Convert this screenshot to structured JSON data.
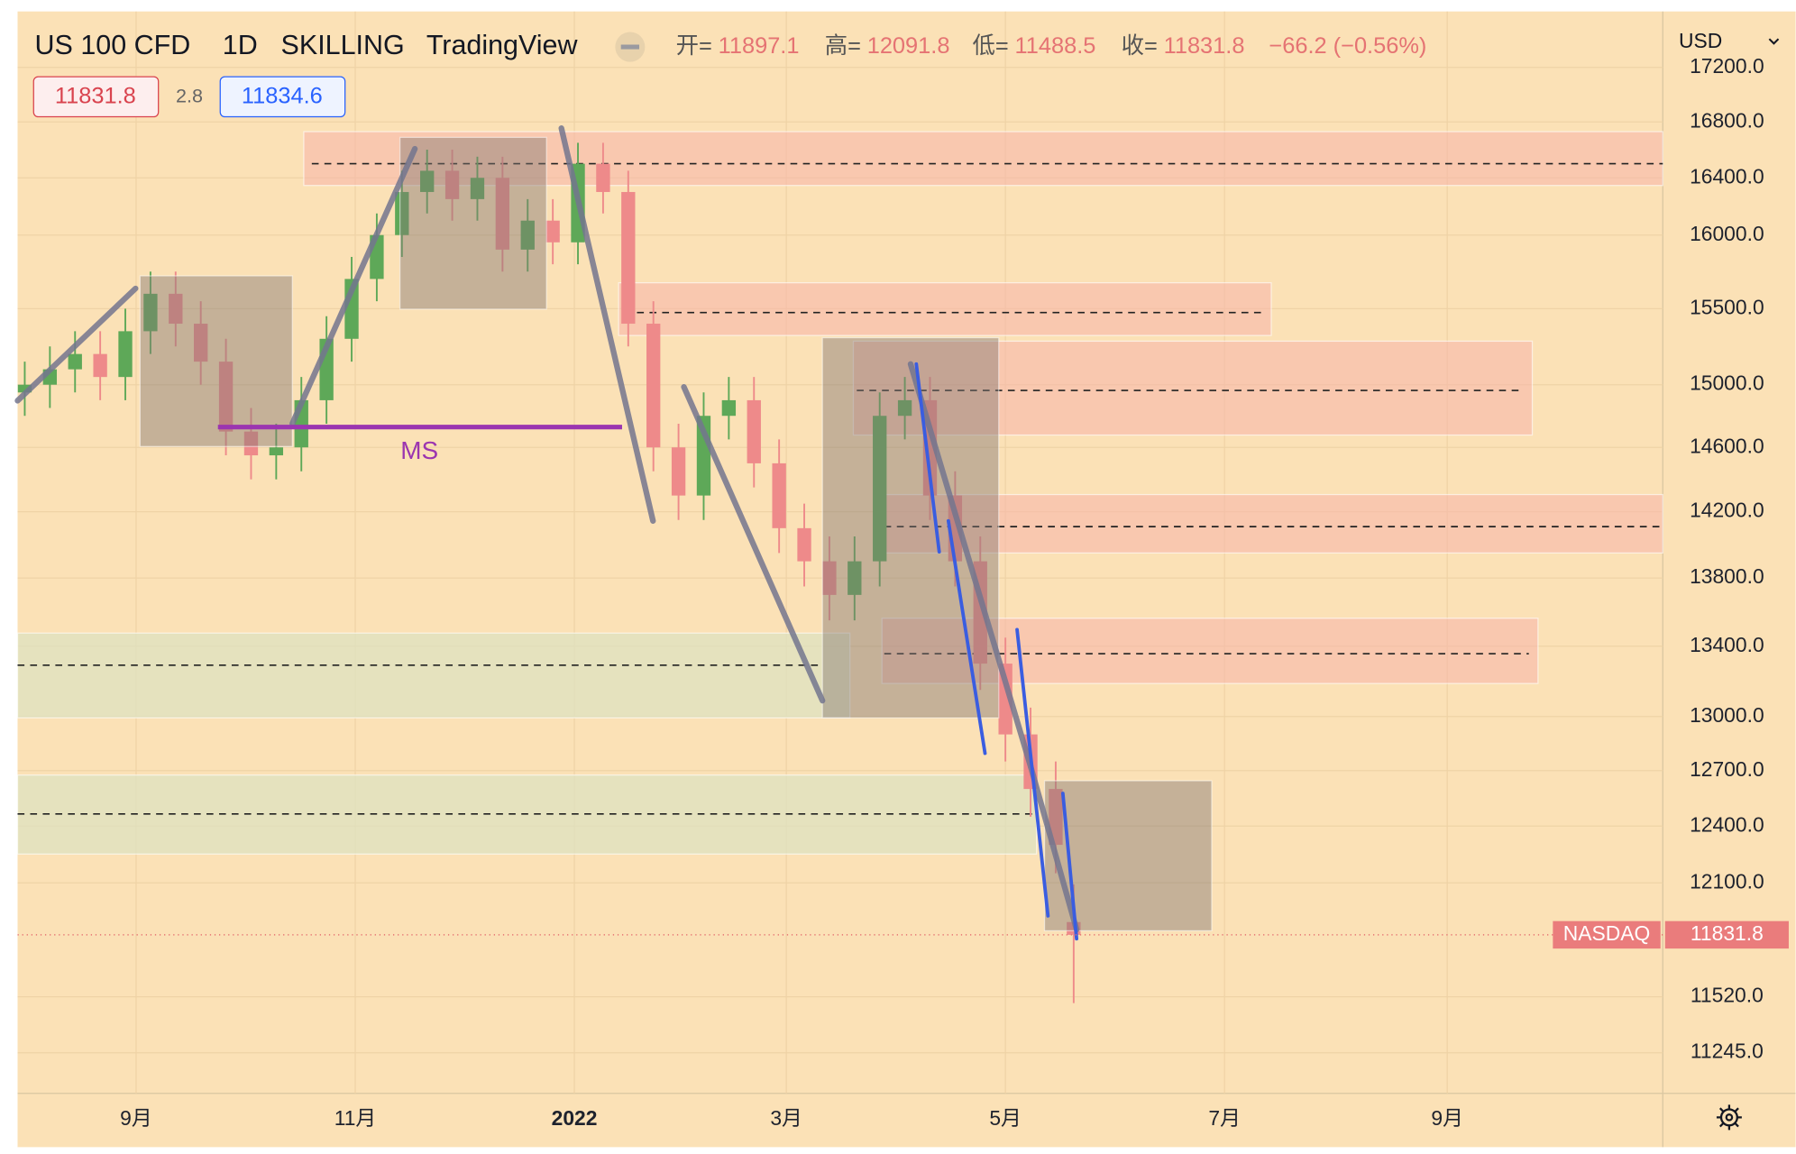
{
  "header": {
    "symbol": "US 100 CFD",
    "interval": "1D",
    "broker": "SKILLING",
    "source": "TradingView",
    "open_label": "开=",
    "high_label": "高=",
    "low_label": "低=",
    "close_label": "收=",
    "change": "−66.2 (−0.56%)",
    "spread": "2.8",
    "ask": "11834.6",
    "currency": "USD"
  },
  "chart_data": {
    "type": "candlestick",
    "exchange_label": "NASDAQ",
    "log_scale": true,
    "grid": true,
    "up_color": "#5ea858",
    "down_color": "#ee8a8a",
    "x": [
      0,
      7,
      14,
      21,
      28,
      35,
      42,
      49,
      56,
      63,
      70,
      77,
      84,
      91,
      98,
      105,
      112,
      119,
      126,
      133,
      140,
      147,
      154,
      161,
      168,
      175,
      182,
      189,
      196,
      203,
      210,
      217,
      224,
      231,
      238,
      245,
      252,
      259,
      266,
      273,
      280,
      287,
      292
    ],
    "open": [
      14950,
      15000,
      15100,
      15200,
      15050,
      15350,
      15600,
      15400,
      15150,
      14700,
      14550,
      14600,
      14900,
      15300,
      15700,
      16000,
      16300,
      16450,
      16250,
      16400,
      15900,
      16100,
      15950,
      16500,
      16300,
      15400,
      14600,
      14300,
      14800,
      14900,
      14500,
      14100,
      13900,
      13700,
      13900,
      14800,
      14900,
      14300,
      13900,
      13300,
      12900,
      12600,
      11897.1
    ],
    "high": [
      15150,
      15250,
      15350,
      15350,
      15500,
      15750,
      15750,
      15550,
      15300,
      14850,
      14750,
      15050,
      15450,
      15850,
      16150,
      16450,
      16600,
      16600,
      16550,
      16550,
      16250,
      16250,
      16650,
      16650,
      16450,
      15550,
      14750,
      14950,
      15050,
      15050,
      14650,
      14250,
      14050,
      14050,
      14950,
      15050,
      15050,
      14450,
      14050,
      13450,
      13050,
      12750,
      12091.8
    ],
    "low": [
      14800,
      14850,
      14950,
      14900,
      14900,
      15200,
      15250,
      15000,
      14550,
      14400,
      14400,
      14450,
      14750,
      15150,
      15550,
      15850,
      16150,
      16100,
      16100,
      15750,
      15750,
      15800,
      15800,
      16150,
      15250,
      14450,
      14150,
      14150,
      14650,
      14350,
      13950,
      13750,
      13550,
      13550,
      13750,
      14650,
      14150,
      13750,
      13150,
      12750,
      12450,
      12150,
      11488.5
    ],
    "close": [
      15000,
      15100,
      15200,
      15050,
      15350,
      15600,
      15400,
      15150,
      14700,
      14550,
      14600,
      14900,
      15300,
      15700,
      16000,
      16300,
      16450,
      16250,
      16400,
      15900,
      16100,
      15950,
      16500,
      16300,
      15400,
      14600,
      14300,
      14800,
      14900,
      14500,
      14100,
      13900,
      13700,
      13900,
      14800,
      14900,
      14300,
      13900,
      13300,
      12900,
      12600,
      12300,
      11831.8
    ],
    "xlim": [
      -2,
      456
    ],
    "xticks": [
      {
        "value": 31,
        "label": "9月"
      },
      {
        "value": 92,
        "label": "11月"
      },
      {
        "value": 153,
        "label": "2022"
      },
      {
        "value": 212,
        "label": "3月"
      },
      {
        "value": 273,
        "label": "5月"
      },
      {
        "value": 334,
        "label": "7月"
      },
      {
        "value": 396,
        "label": "9月"
      }
    ],
    "ylim": [
      11050,
      17620
    ],
    "yticks": [
      {
        "value": 17200,
        "label": "17200.0"
      },
      {
        "value": 16800,
        "label": "16800.0"
      },
      {
        "value": 16400,
        "label": "16400.0"
      },
      {
        "value": 16000,
        "label": "16000.0"
      },
      {
        "value": 15500,
        "label": "15500.0"
      },
      {
        "value": 15000,
        "label": "15000.0"
      },
      {
        "value": 14600,
        "label": "14600.0"
      },
      {
        "value": 14200,
        "label": "14200.0"
      },
      {
        "value": 13800,
        "label": "13800.0"
      },
      {
        "value": 13400,
        "label": "13400.0"
      },
      {
        "value": 13000,
        "label": "13000.0"
      },
      {
        "value": 12700,
        "label": "12700.0"
      },
      {
        "value": 12400,
        "label": "12400.0"
      },
      {
        "value": 12100,
        "label": "12100.0"
      },
      {
        "value": 11520,
        "label": "11520.0"
      },
      {
        "value": 11245,
        "label": "11245.0"
      }
    ],
    "annotations": [
      "MS"
    ]
  }
}
